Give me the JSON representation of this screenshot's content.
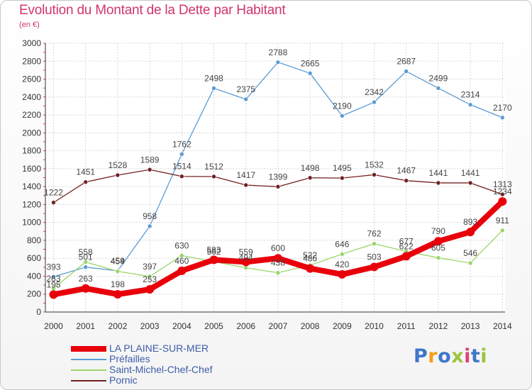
{
  "title": "Evolution du Montant de la Dette par Habitant",
  "subtitle": "(en €)",
  "logo": {
    "letters": [
      "P",
      "r",
      "o",
      "x",
      "i",
      "t",
      "i"
    ],
    "colors": [
      "#3d78c8",
      "#f59d1b",
      "#3d78c8",
      "#9bc53d",
      "#e0407a",
      "#3d78c8",
      "#9bc53d"
    ]
  },
  "chart_data": {
    "type": "line",
    "x": [
      "2000",
      "2001",
      "2002",
      "2003",
      "2004",
      "2005",
      "2006",
      "2007",
      "2008",
      "2009",
      "2010",
      "2011",
      "2012",
      "2013",
      "2014"
    ],
    "ylim": [
      0,
      3000
    ],
    "yticks": [
      0,
      200,
      400,
      600,
      800,
      1000,
      1200,
      1400,
      1600,
      1800,
      2000,
      2200,
      2400,
      2600,
      2800,
      3000
    ],
    "grid": true,
    "legend_position": "bottom-left",
    "series": [
      {
        "name": "LA PLAINE-SUR-MER",
        "color": "#e8000b",
        "values": [
          195,
          263,
          198,
          253,
          460,
          583,
          559,
          600,
          486,
          420,
          503,
          622,
          790,
          893,
          1234
        ],
        "labels": [
          "195",
          "263",
          "198",
          "253",
          "460",
          "583",
          "559",
          "600",
          "486",
          "420",
          "503",
          "622",
          "790",
          "893",
          "1234"
        ]
      },
      {
        "name": "Préfailles",
        "color": "#5a9bd5",
        "values": [
          393,
          501,
          459,
          958,
          1762,
          2498,
          2375,
          2788,
          2665,
          2190,
          2342,
          2687,
          2499,
          2314,
          2170
        ],
        "labels": [
          "393",
          "501",
          "459",
          "958",
          "1762",
          "2498",
          "2375",
          "2788",
          "2665",
          "2190",
          "2342",
          "2687",
          "2499",
          "2314",
          "2170"
        ]
      },
      {
        "name": "Saint-Michel-Chef-Chef",
        "color": "#9ad46a",
        "values": [
          263,
          558,
          454,
          397,
          630,
          562,
          494,
          438,
          522,
          646,
          762,
          677,
          605,
          546,
          911
        ],
        "labels": [
          "263",
          "558",
          "454",
          "397",
          "630",
          "562",
          "494",
          "438",
          "522",
          "646",
          "762",
          "677",
          "605",
          "546",
          "911"
        ]
      },
      {
        "name": "Pornic",
        "color": "#722020",
        "values": [
          1222,
          1451,
          1528,
          1589,
          1514,
          1512,
          1417,
          1399,
          1498,
          1495,
          1532,
          1467,
          1441,
          1441,
          1313
        ],
        "labels": [
          "1222",
          "1451",
          "1528",
          "1589",
          "1514",
          "1512",
          "1417",
          "1399",
          "1498",
          "1495",
          "1532",
          "1467",
          "1441",
          "1441",
          "1313"
        ]
      }
    ]
  }
}
